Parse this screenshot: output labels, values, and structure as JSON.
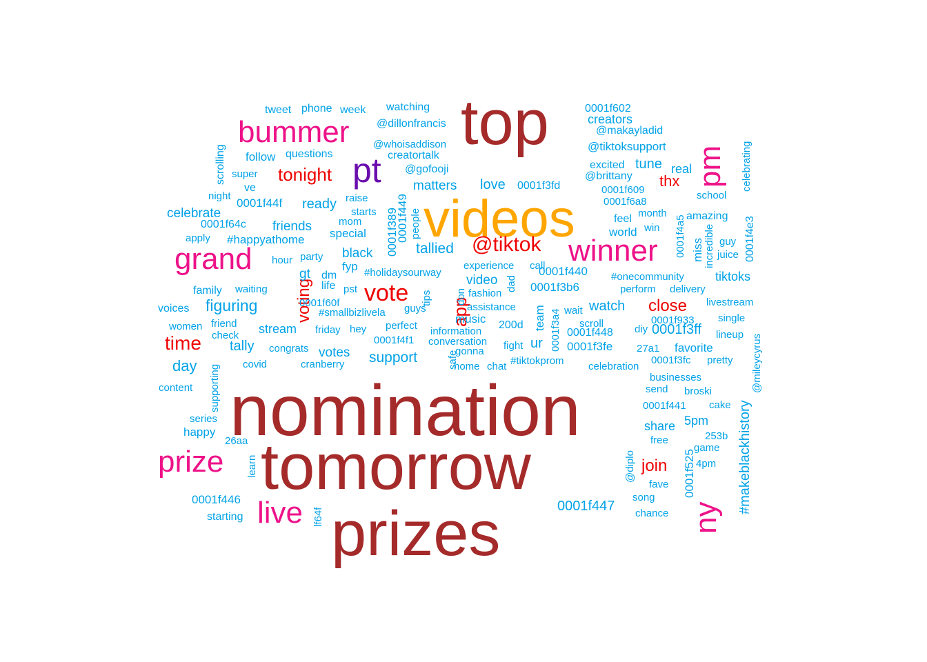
{
  "colors": {
    "dark_red": "#a52a2a",
    "orange": "#ffa500",
    "magenta": "#ee1289",
    "purple": "#6a0dad",
    "red": "#ee0000",
    "light_blue": "#00a2e8"
  },
  "words": [
    {
      "text": "nomination",
      "color": "dark_red",
      "size": 104,
      "rot": false
    },
    {
      "text": "tomorrow",
      "color": "dark_red",
      "size": 94,
      "rot": false
    },
    {
      "text": "top",
      "color": "dark_red",
      "size": 92,
      "rot": false
    },
    {
      "text": "prizes",
      "color": "dark_red",
      "size": 92,
      "rot": false
    },
    {
      "text": "videos",
      "color": "orange",
      "size": 76,
      "rot": false
    },
    {
      "text": "bummer",
      "color": "magenta",
      "size": 44,
      "rot": false
    },
    {
      "text": "grand",
      "color": "magenta",
      "size": 44,
      "rot": false
    },
    {
      "text": "winner",
      "color": "magenta",
      "size": 44,
      "rot": false
    },
    {
      "text": "prize",
      "color": "magenta",
      "size": 44,
      "rot": false
    },
    {
      "text": "live",
      "color": "magenta",
      "size": 44,
      "rot": false
    },
    {
      "text": "pm",
      "color": "magenta",
      "size": 44,
      "rot": true
    },
    {
      "text": "ny",
      "color": "magenta",
      "size": 44,
      "rot": true
    },
    {
      "text": "pt",
      "color": "purple",
      "size": 50,
      "rot": false
    },
    {
      "text": "@tiktok",
      "color": "red",
      "size": 30,
      "rot": false
    },
    {
      "text": "vote",
      "color": "red",
      "size": 34,
      "rot": false
    },
    {
      "text": "time",
      "color": "red",
      "size": 28,
      "rot": false
    },
    {
      "text": "tonight",
      "color": "red",
      "size": 26,
      "rot": false
    },
    {
      "text": "close",
      "color": "red",
      "size": 24,
      "rot": false
    },
    {
      "text": "thx",
      "color": "red",
      "size": 22,
      "rot": false
    },
    {
      "text": "join",
      "color": "red",
      "size": 24,
      "rot": false
    },
    {
      "text": "app",
      "color": "red",
      "size": 26,
      "rot": true
    },
    {
      "text": "voting",
      "color": "red",
      "size": 24,
      "rot": true
    },
    {
      "text": "tweet",
      "color": "light_blue",
      "size": 16,
      "rot": false
    },
    {
      "text": "phone",
      "color": "light_blue",
      "size": 16,
      "rot": false
    },
    {
      "text": "week",
      "color": "light_blue",
      "size": 16,
      "rot": false
    },
    {
      "text": "watching",
      "color": "light_blue",
      "size": 16,
      "rot": false
    },
    {
      "text": "0001f602",
      "color": "light_blue",
      "size": 16,
      "rot": false
    },
    {
      "text": "creators",
      "color": "light_blue",
      "size": 18,
      "rot": false
    },
    {
      "text": "@dillonfrancis",
      "color": "light_blue",
      "size": 16,
      "rot": false
    },
    {
      "text": "@makayladid",
      "color": "light_blue",
      "size": 16,
      "rot": false
    },
    {
      "text": "@whoisaddison",
      "color": "light_blue",
      "size": 15,
      "rot": false
    },
    {
      "text": "@tiktoksupport",
      "color": "light_blue",
      "size": 17,
      "rot": false
    },
    {
      "text": "follow",
      "color": "light_blue",
      "size": 17,
      "rot": false
    },
    {
      "text": "questions",
      "color": "light_blue",
      "size": 16,
      "rot": false
    },
    {
      "text": "creatortalk",
      "color": "light_blue",
      "size": 16,
      "rot": false
    },
    {
      "text": "excited",
      "color": "light_blue",
      "size": 16,
      "rot": false
    },
    {
      "text": "tune",
      "color": "light_blue",
      "size": 20,
      "rot": false
    },
    {
      "text": "real",
      "color": "light_blue",
      "size": 18,
      "rot": false
    },
    {
      "text": "@gofooji",
      "color": "light_blue",
      "size": 16,
      "rot": false
    },
    {
      "text": "@brittany",
      "color": "light_blue",
      "size": 16,
      "rot": false
    },
    {
      "text": "super",
      "color": "light_blue",
      "size": 15,
      "rot": false
    },
    {
      "text": "matters",
      "color": "light_blue",
      "size": 19,
      "rot": false
    },
    {
      "text": "love",
      "color": "light_blue",
      "size": 20,
      "rot": false
    },
    {
      "text": "0001f3fd",
      "color": "light_blue",
      "size": 16,
      "rot": false
    },
    {
      "text": "0001f609",
      "color": "light_blue",
      "size": 15,
      "rot": false
    },
    {
      "text": "ve",
      "color": "light_blue",
      "size": 16,
      "rot": false
    },
    {
      "text": "night",
      "color": "light_blue",
      "size": 15,
      "rot": false
    },
    {
      "text": "raise",
      "color": "light_blue",
      "size": 15,
      "rot": false
    },
    {
      "text": "school",
      "color": "light_blue",
      "size": 15,
      "rot": false
    },
    {
      "text": "0001f44f",
      "color": "light_blue",
      "size": 17,
      "rot": false
    },
    {
      "text": "ready",
      "color": "light_blue",
      "size": 20,
      "rot": false
    },
    {
      "text": "starts",
      "color": "light_blue",
      "size": 15,
      "rot": false
    },
    {
      "text": "0001f6a8",
      "color": "light_blue",
      "size": 15,
      "rot": false
    },
    {
      "text": "celebrate",
      "color": "light_blue",
      "size": 19,
      "rot": false
    },
    {
      "text": "mom",
      "color": "light_blue",
      "size": 15,
      "rot": false
    },
    {
      "text": "month",
      "color": "light_blue",
      "size": 15,
      "rot": false
    },
    {
      "text": "amazing",
      "color": "light_blue",
      "size": 16,
      "rot": false
    },
    {
      "text": "feel",
      "color": "light_blue",
      "size": 16,
      "rot": false
    },
    {
      "text": "0001f64c",
      "color": "light_blue",
      "size": 16,
      "rot": false
    },
    {
      "text": "friends",
      "color": "light_blue",
      "size": 19,
      "rot": false
    },
    {
      "text": "win",
      "color": "light_blue",
      "size": 15,
      "rot": false
    },
    {
      "text": "special",
      "color": "light_blue",
      "size": 17,
      "rot": false
    },
    {
      "text": "world",
      "color": "light_blue",
      "size": 17,
      "rot": false
    },
    {
      "text": "apply",
      "color": "light_blue",
      "size": 15,
      "rot": false
    },
    {
      "text": "#happyathome",
      "color": "light_blue",
      "size": 17,
      "rot": false
    },
    {
      "text": "guy",
      "color": "light_blue",
      "size": 15,
      "rot": false
    },
    {
      "text": "tallied",
      "color": "light_blue",
      "size": 21,
      "rot": false
    },
    {
      "text": "party",
      "color": "light_blue",
      "size": 15,
      "rot": false
    },
    {
      "text": "black",
      "color": "light_blue",
      "size": 19,
      "rot": false
    },
    {
      "text": "juice",
      "color": "light_blue",
      "size": 15,
      "rot": false
    },
    {
      "text": "hour",
      "color": "light_blue",
      "size": 15,
      "rot": false
    },
    {
      "text": "experience",
      "color": "light_blue",
      "size": 15,
      "rot": false
    },
    {
      "text": "call",
      "color": "light_blue",
      "size": 15,
      "rot": false
    },
    {
      "text": "fyp",
      "color": "light_blue",
      "size": 17,
      "rot": false
    },
    {
      "text": "#holidaysourway",
      "color": "light_blue",
      "size": 15,
      "rot": false
    },
    {
      "text": "0001f440",
      "color": "light_blue",
      "size": 17,
      "rot": false
    },
    {
      "text": "#onecommunity",
      "color": "light_blue",
      "size": 15,
      "rot": false
    },
    {
      "text": "gt",
      "color": "light_blue",
      "size": 19,
      "rot": false
    },
    {
      "text": "dm",
      "color": "light_blue",
      "size": 16,
      "rot": false
    },
    {
      "text": "tiktoks",
      "color": "light_blue",
      "size": 18,
      "rot": false
    },
    {
      "text": "video",
      "color": "light_blue",
      "size": 19,
      "rot": false
    },
    {
      "text": "family",
      "color": "light_blue",
      "size": 16,
      "rot": false
    },
    {
      "text": "waiting",
      "color": "light_blue",
      "size": 15,
      "rot": false
    },
    {
      "text": "life",
      "color": "light_blue",
      "size": 16,
      "rot": false
    },
    {
      "text": "pst",
      "color": "light_blue",
      "size": 15,
      "rot": false
    },
    {
      "text": "fashion",
      "color": "light_blue",
      "size": 15,
      "rot": false
    },
    {
      "text": "0001f3b6",
      "color": "light_blue",
      "size": 17,
      "rot": false
    },
    {
      "text": "perform",
      "color": "light_blue",
      "size": 15,
      "rot": false
    },
    {
      "text": "delivery",
      "color": "light_blue",
      "size": 15,
      "rot": false
    },
    {
      "text": "0001f60f",
      "color": "light_blue",
      "size": 15,
      "rot": false
    },
    {
      "text": "livestream",
      "color": "light_blue",
      "size": 15,
      "rot": false
    },
    {
      "text": "figuring",
      "color": "light_blue",
      "size": 23,
      "rot": false
    },
    {
      "text": "voices",
      "color": "light_blue",
      "size": 16,
      "rot": false
    },
    {
      "text": "#smallbizlivela",
      "color": "light_blue",
      "size": 15,
      "rot": false
    },
    {
      "text": "guys",
      "color": "light_blue",
      "size": 15,
      "rot": false
    },
    {
      "text": "assistance",
      "color": "light_blue",
      "size": 15,
      "rot": false
    },
    {
      "text": "watch",
      "color": "light_blue",
      "size": 20,
      "rot": false
    },
    {
      "text": "wait",
      "color": "light_blue",
      "size": 15,
      "rot": false
    },
    {
      "text": "single",
      "color": "light_blue",
      "size": 15,
      "rot": false
    },
    {
      "text": "women",
      "color": "light_blue",
      "size": 15,
      "rot": false
    },
    {
      "text": "friend",
      "color": "light_blue",
      "size": 15,
      "rot": false
    },
    {
      "text": "music",
      "color": "light_blue",
      "size": 17,
      "rot": false
    },
    {
      "text": "scroll",
      "color": "light_blue",
      "size": 15,
      "rot": false
    },
    {
      "text": "0001f933",
      "color": "light_blue",
      "size": 15,
      "rot": false
    },
    {
      "text": "stream",
      "color": "light_blue",
      "size": 18,
      "rot": false
    },
    {
      "text": "friday",
      "color": "light_blue",
      "size": 15,
      "rot": false
    },
    {
      "text": "hey",
      "color": "light_blue",
      "size": 15,
      "rot": false
    },
    {
      "text": "perfect",
      "color": "light_blue",
      "size": 15,
      "rot": false
    },
    {
      "text": "200d",
      "color": "light_blue",
      "size": 16,
      "rot": false
    },
    {
      "text": "diy",
      "color": "light_blue",
      "size": 15,
      "rot": false
    },
    {
      "text": "0001f3ff",
      "color": "light_blue",
      "size": 20,
      "rot": false
    },
    {
      "text": "check",
      "color": "light_blue",
      "size": 15,
      "rot": false
    },
    {
      "text": "information",
      "color": "light_blue",
      "size": 15,
      "rot": false
    },
    {
      "text": "0001f448",
      "color": "light_blue",
      "size": 16,
      "rot": false
    },
    {
      "text": "lineup",
      "color": "light_blue",
      "size": 15,
      "rot": false
    },
    {
      "text": "tally",
      "color": "light_blue",
      "size": 20,
      "rot": false
    },
    {
      "text": "congrats",
      "color": "light_blue",
      "size": 15,
      "rot": false
    },
    {
      "text": "0001f4f1",
      "color": "light_blue",
      "size": 15,
      "rot": false
    },
    {
      "text": "conversation",
      "color": "light_blue",
      "size": 15,
      "rot": false
    },
    {
      "text": "ur",
      "color": "light_blue",
      "size": 20,
      "rot": false
    },
    {
      "text": "fight",
      "color": "light_blue",
      "size": 15,
      "rot": false
    },
    {
      "text": "0001f3fe",
      "color": "light_blue",
      "size": 17,
      "rot": false
    },
    {
      "text": "27a1",
      "color": "light_blue",
      "size": 15,
      "rot": false
    },
    {
      "text": "favorite",
      "color": "light_blue",
      "size": 17,
      "rot": false
    },
    {
      "text": "votes",
      "color": "light_blue",
      "size": 19,
      "rot": false
    },
    {
      "text": "day",
      "color": "light_blue",
      "size": 22,
      "rot": false
    },
    {
      "text": "support",
      "color": "light_blue",
      "size": 21,
      "rot": false
    },
    {
      "text": "#tiktokprom",
      "color": "light_blue",
      "size": 15,
      "rot": false
    },
    {
      "text": "pretty",
      "color": "light_blue",
      "size": 15,
      "rot": false
    },
    {
      "text": "0001f3fc",
      "color": "light_blue",
      "size": 15,
      "rot": false
    },
    {
      "text": "covid",
      "color": "light_blue",
      "size": 15,
      "rot": false
    },
    {
      "text": "cranberry",
      "color": "light_blue",
      "size": 15,
      "rot": false
    },
    {
      "text": "home",
      "color": "light_blue",
      "size": 15,
      "rot": false
    },
    {
      "text": "chat",
      "color": "light_blue",
      "size": 15,
      "rot": false
    },
    {
      "text": "celebration",
      "color": "light_blue",
      "size": 15,
      "rot": false
    },
    {
      "text": "businesses",
      "color": "light_blue",
      "size": 15,
      "rot": false
    },
    {
      "text": "content",
      "color": "light_blue",
      "size": 15,
      "rot": false
    },
    {
      "text": "send",
      "color": "light_blue",
      "size": 15,
      "rot": false
    },
    {
      "text": "broski",
      "color": "light_blue",
      "size": 15,
      "rot": false
    },
    {
      "text": "0001f441",
      "color": "light_blue",
      "size": 15,
      "rot": false
    },
    {
      "text": "cake",
      "color": "light_blue",
      "size": 15,
      "rot": false
    },
    {
      "text": "series",
      "color": "light_blue",
      "size": 15,
      "rot": false
    },
    {
      "text": "share",
      "color": "light_blue",
      "size": 18,
      "rot": false
    },
    {
      "text": "5pm",
      "color": "light_blue",
      "size": 18,
      "rot": false
    },
    {
      "text": "happy",
      "color": "light_blue",
      "size": 17,
      "rot": false
    },
    {
      "text": "26aa",
      "color": "light_blue",
      "size": 15,
      "rot": false
    },
    {
      "text": "free",
      "color": "light_blue",
      "size": 15,
      "rot": false
    },
    {
      "text": "253b",
      "color": "light_blue",
      "size": 15,
      "rot": false
    },
    {
      "text": "game",
      "color": "light_blue",
      "size": 15,
      "rot": false
    },
    {
      "text": "4pm",
      "color": "light_blue",
      "size": 15,
      "rot": false
    },
    {
      "text": "fave",
      "color": "light_blue",
      "size": 15,
      "rot": false
    },
    {
      "text": "0001f446",
      "color": "light_blue",
      "size": 17,
      "rot": false
    },
    {
      "text": "song",
      "color": "light_blue",
      "size": 15,
      "rot": false
    },
    {
      "text": "0001f447",
      "color": "light_blue",
      "size": 20,
      "rot": false
    },
    {
      "text": "starting",
      "color": "light_blue",
      "size": 16,
      "rot": false
    },
    {
      "text": "chance",
      "color": "light_blue",
      "size": 15,
      "rot": false
    },
    {
      "text": "scrolling",
      "color": "light_blue",
      "size": 16,
      "rot": true
    },
    {
      "text": "supporting",
      "color": "light_blue",
      "size": 15,
      "rot": true
    },
    {
      "text": "learn",
      "color": "light_blue",
      "size": 15,
      "rot": true
    },
    {
      "text": "0001f389",
      "color": "light_blue",
      "size": 17,
      "rot": true
    },
    {
      "text": "0001f449",
      "color": "light_blue",
      "size": 17,
      "rot": true
    },
    {
      "text": "people",
      "color": "light_blue",
      "size": 15,
      "rot": true
    },
    {
      "text": "tips",
      "color": "light_blue",
      "size": 15,
      "rot": true
    },
    {
      "text": "don",
      "color": "light_blue",
      "size": 15,
      "rot": true
    },
    {
      "text": "safe",
      "color": "light_blue",
      "size": 15,
      "rot": true
    },
    {
      "text": "gonna",
      "color": "light_blue",
      "size": 15,
      "rot": false
    },
    {
      "text": "dad",
      "color": "light_blue",
      "size": 15,
      "rot": true
    },
    {
      "text": "team",
      "color": "light_blue",
      "size": 17,
      "rot": true
    },
    {
      "text": "0001f3a4",
      "color": "light_blue",
      "size": 15,
      "rot": true
    },
    {
      "text": "0001f4a5",
      "color": "light_blue",
      "size": 15,
      "rot": true
    },
    {
      "text": "miss",
      "color": "light_blue",
      "size": 17,
      "rot": true
    },
    {
      "text": "incredible",
      "color": "light_blue",
      "size": 15,
      "rot": true
    },
    {
      "text": "0001f4e3",
      "color": "light_blue",
      "size": 16,
      "rot": true
    },
    {
      "text": "celebrating",
      "color": "light_blue",
      "size": 15,
      "rot": true
    },
    {
      "text": "@mileycyrus",
      "color": "light_blue",
      "size": 15,
      "rot": true
    },
    {
      "text": "#makeblackhistory",
      "color": "light_blue",
      "size": 20,
      "rot": true
    },
    {
      "text": "0001f525",
      "color": "light_blue",
      "size": 17,
      "rot": true
    },
    {
      "text": "@diplo",
      "color": "light_blue",
      "size": 15,
      "rot": true
    },
    {
      "text": "lf64f",
      "color": "light_blue",
      "size": 15,
      "rot": true
    }
  ]
}
